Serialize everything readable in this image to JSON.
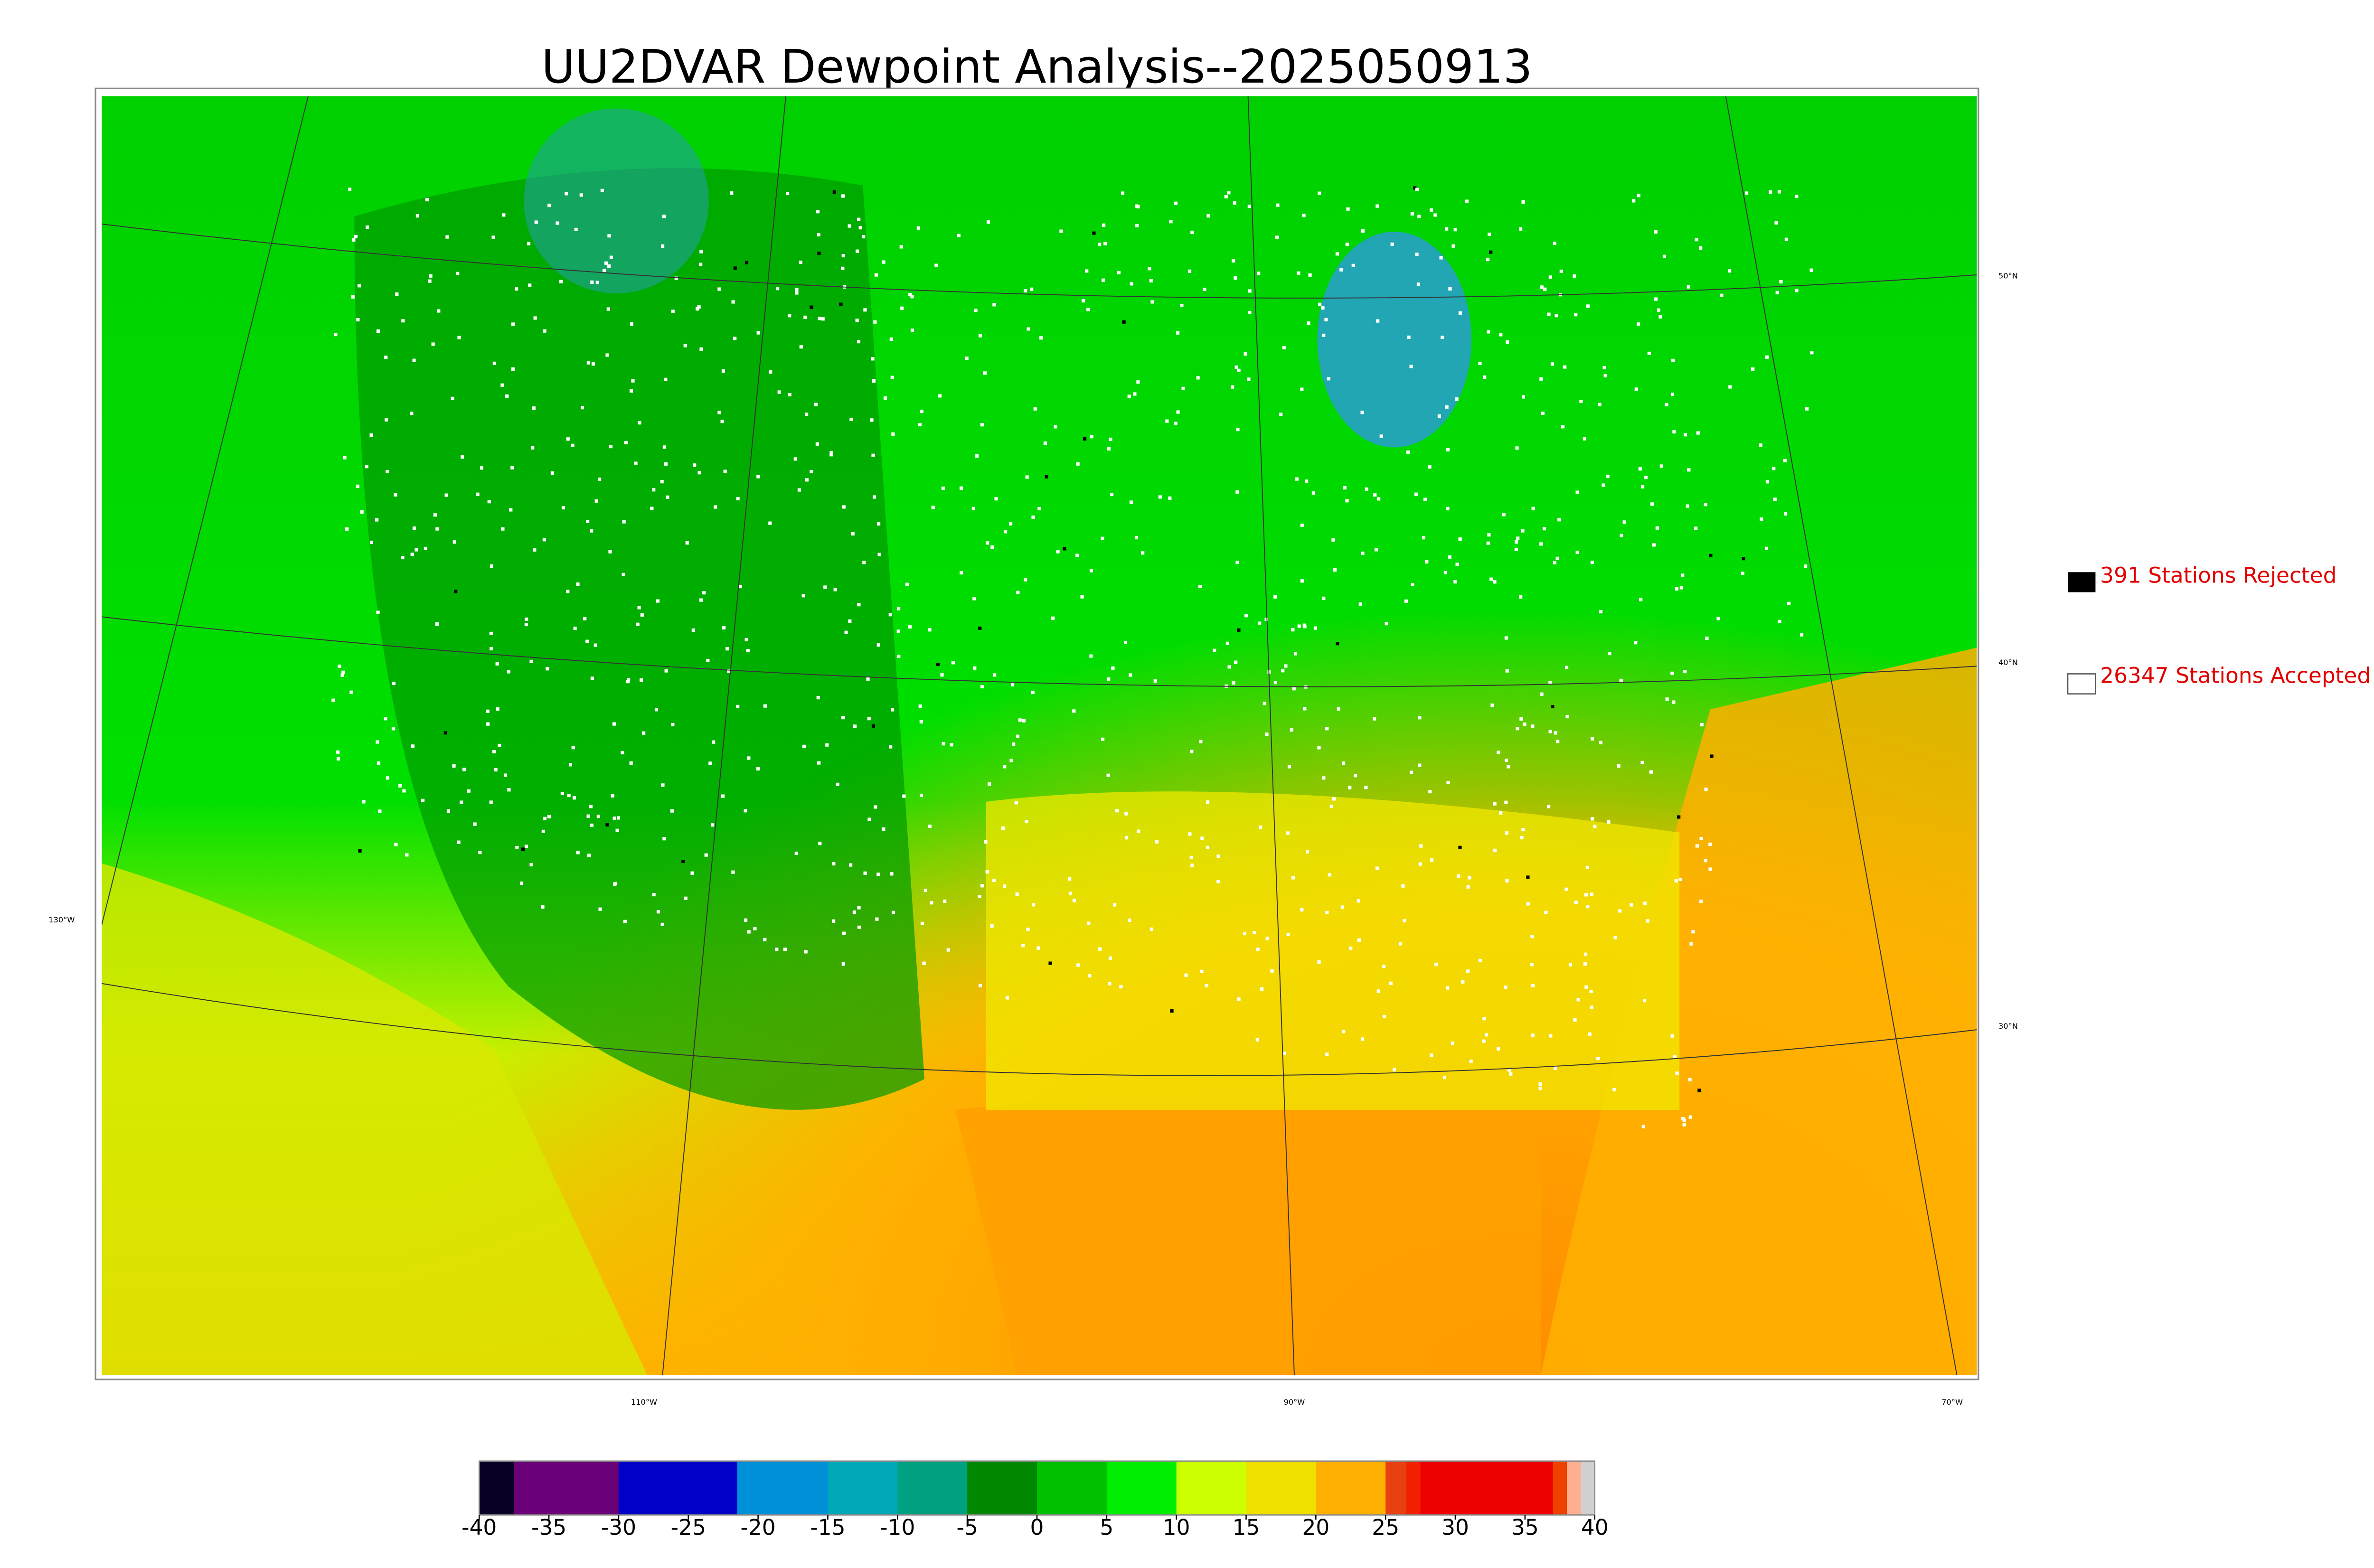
{
  "title": "UU2DVAR Dewpoint Analysis--2025050913",
  "legend": {
    "rejected": "391 Stations Rejected",
    "accepted": "26347 Stations Accepted"
  },
  "map_labels": {
    "lat": [
      "50°N",
      "40°N",
      "30°N"
    ],
    "lon_left": "130°W",
    "lon_bottom": [
      "110°W",
      "90°W",
      "70°W"
    ]
  },
  "colorbar": {
    "lim": [
      -40,
      40
    ],
    "ticks": [
      -40,
      -35,
      -30,
      -25,
      -20,
      -15,
      -10,
      -5,
      0,
      5,
      10,
      15,
      20,
      25,
      30,
      35,
      40
    ],
    "segments": [
      {
        "from": -40,
        "to": -37.5,
        "color": "#0a0025"
      },
      {
        "from": -37.5,
        "to": -30,
        "color": "#6a0078"
      },
      {
        "from": -30,
        "to": -21.5,
        "color": "#0000c8"
      },
      {
        "from": -21.5,
        "to": -15,
        "color": "#0090d8"
      },
      {
        "from": -15,
        "to": -10,
        "color": "#00a8b8"
      },
      {
        "from": -10,
        "to": -5,
        "color": "#00a080"
      },
      {
        "from": -5,
        "to": 0,
        "color": "#008800"
      },
      {
        "from": 0,
        "to": 5,
        "color": "#00c000"
      },
      {
        "from": 5,
        "to": 10,
        "color": "#00ee00"
      },
      {
        "from": 10,
        "to": 15,
        "color": "#ccff00"
      },
      {
        "from": 15,
        "to": 20,
        "color": "#f0e000"
      },
      {
        "from": 20,
        "to": 25,
        "color": "#ffb000"
      },
      {
        "from": 25,
        "to": 26.5,
        "color": "#e84010"
      },
      {
        "from": 26.5,
        "to": 27.5,
        "color": "#f02000"
      },
      {
        "from": 27.5,
        "to": 37,
        "color": "#ee0000"
      },
      {
        "from": 37,
        "to": 38,
        "color": "#f04000"
      },
      {
        "from": 38,
        "to": 39,
        "color": "#ffb090"
      },
      {
        "from": 39,
        "to": 40,
        "color": "#d0d0d0"
      }
    ]
  }
}
